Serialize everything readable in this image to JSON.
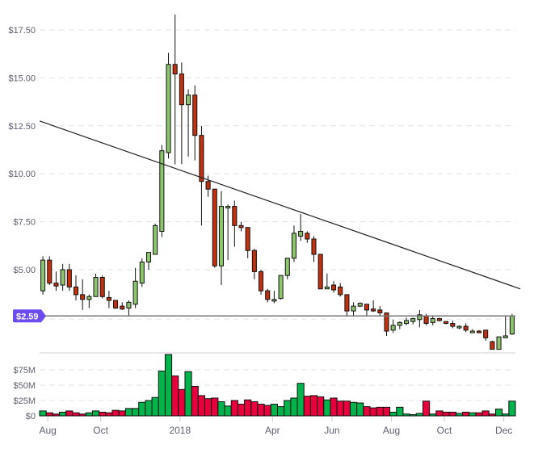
{
  "chart_data": {
    "type": "candlestick",
    "title": "",
    "xlabel": "",
    "ylabel": "",
    "grid": true,
    "price_axis": {
      "ticks": [
        "$5.00",
        "$7.50",
        "$10.00",
        "$12.50",
        "$15.00",
        "$17.50"
      ],
      "tick_values": [
        5,
        7.5,
        10,
        12.5,
        15,
        17.5
      ],
      "ylim": [
        0,
        18.5
      ]
    },
    "volume_axis": {
      "ticks": [
        "$0",
        "$25M",
        "$50M",
        "$75M"
      ],
      "tick_values": [
        0,
        25,
        50,
        75
      ],
      "unit": "M USD",
      "ylim": [
        0,
        105
      ]
    },
    "x_ticks": [
      {
        "label": "Aug",
        "index": 1
      },
      {
        "label": "Oct",
        "index": 9
      },
      {
        "label": "2018",
        "index": 21
      },
      {
        "label": "Apr",
        "index": 35
      },
      {
        "label": "Jun",
        "index": 44
      },
      {
        "label": "Aug",
        "index": 53
      },
      {
        "label": "Oct",
        "index": 61
      },
      {
        "label": "Dec",
        "index": 70
      }
    ],
    "current_price": {
      "label": "$2.59",
      "value": 2.59,
      "color": "#6c4cf0"
    },
    "trendline": {
      "from": {
        "index": -0.5,
        "value": 12.75
      },
      "to": {
        "index": 72,
        "value": 4.0
      }
    },
    "colors": {
      "up": "#8cc56e",
      "down": "#c2300e",
      "vol_up": "#00b34a",
      "vol_down": "#e8003c",
      "outline": "#111111"
    },
    "candles": [
      {
        "o": 3.9,
        "h": 5.7,
        "l": 3.7,
        "c": 5.5,
        "v": 8
      },
      {
        "o": 5.5,
        "h": 5.7,
        "l": 4.2,
        "c": 4.3,
        "v": 5
      },
      {
        "o": 4.3,
        "h": 4.9,
        "l": 3.9,
        "c": 4.15,
        "v": 3
      },
      {
        "o": 4.2,
        "h": 5.3,
        "l": 3.9,
        "c": 5.0,
        "v": 6
      },
      {
        "o": 5.0,
        "h": 5.3,
        "l": 3.9,
        "c": 4.1,
        "v": 8
      },
      {
        "o": 4.1,
        "h": 4.7,
        "l": 3.4,
        "c": 3.7,
        "v": 5
      },
      {
        "o": 3.7,
        "h": 4.5,
        "l": 2.9,
        "c": 3.45,
        "v": 3
      },
      {
        "o": 3.45,
        "h": 3.7,
        "l": 3.0,
        "c": 3.6,
        "v": 5
      },
      {
        "o": 3.6,
        "h": 4.8,
        "l": 3.6,
        "c": 4.6,
        "v": 8
      },
      {
        "o": 4.6,
        "h": 4.7,
        "l": 3.5,
        "c": 3.6,
        "v": 6
      },
      {
        "o": 3.55,
        "h": 3.9,
        "l": 3.0,
        "c": 3.4,
        "v": 5
      },
      {
        "o": 3.4,
        "h": 3.4,
        "l": 2.95,
        "c": 3.0,
        "v": 9
      },
      {
        "o": 3.1,
        "h": 3.3,
        "l": 2.9,
        "c": 2.95,
        "v": 8
      },
      {
        "o": 3.0,
        "h": 3.4,
        "l": 2.59,
        "c": 3.3,
        "v": 12
      },
      {
        "o": 3.2,
        "h": 5.1,
        "l": 3.0,
        "c": 4.4,
        "v": 12
      },
      {
        "o": 4.3,
        "h": 5.6,
        "l": 4.1,
        "c": 5.4,
        "v": 22
      },
      {
        "o": 5.4,
        "h": 5.9,
        "l": 5.0,
        "c": 5.9,
        "v": 25
      },
      {
        "o": 5.8,
        "h": 7.4,
        "l": 5.8,
        "c": 7.3,
        "v": 30
      },
      {
        "o": 7.0,
        "h": 11.5,
        "l": 6.7,
        "c": 11.2,
        "v": 73
      },
      {
        "o": 11.1,
        "h": 16.3,
        "l": 10.8,
        "c": 15.7,
        "v": 100
      },
      {
        "o": 15.7,
        "h": 18.3,
        "l": 10.5,
        "c": 15.2,
        "v": 65
      },
      {
        "o": 15.2,
        "h": 15.8,
        "l": 10.5,
        "c": 13.6,
        "v": 43
      },
      {
        "o": 13.6,
        "h": 14.4,
        "l": 10.9,
        "c": 14.1,
        "v": 72
      },
      {
        "o": 14.1,
        "h": 14.6,
        "l": 10.7,
        "c": 12.0,
        "v": 48
      },
      {
        "o": 12.0,
        "h": 12.5,
        "l": 7.3,
        "c": 9.6,
        "v": 33
      },
      {
        "o": 9.6,
        "h": 9.9,
        "l": 8.8,
        "c": 9.2,
        "v": 28
      },
      {
        "o": 9.2,
        "h": 9.2,
        "l": 5.1,
        "c": 5.2,
        "v": 29
      },
      {
        "o": 5.2,
        "h": 9.1,
        "l": 4.2,
        "c": 8.3,
        "v": 23
      },
      {
        "o": 8.3,
        "h": 8.4,
        "l": 5.5,
        "c": 8.3,
        "v": 16
      },
      {
        "o": 8.3,
        "h": 8.6,
        "l": 6.2,
        "c": 7.3,
        "v": 25
      },
      {
        "o": 7.3,
        "h": 7.5,
        "l": 7.0,
        "c": 7.2,
        "v": 19
      },
      {
        "o": 7.2,
        "h": 7.2,
        "l": 5.6,
        "c": 6.0,
        "v": 26
      },
      {
        "o": 6.0,
        "h": 6.1,
        "l": 4.5,
        "c": 4.9,
        "v": 23
      },
      {
        "o": 4.9,
        "h": 5.0,
        "l": 3.7,
        "c": 3.9,
        "v": 19
      },
      {
        "o": 3.9,
        "h": 4.0,
        "l": 3.3,
        "c": 3.45,
        "v": 17
      },
      {
        "o": 3.45,
        "h": 3.9,
        "l": 3.25,
        "c": 3.45,
        "v": 19
      },
      {
        "o": 3.5,
        "h": 4.7,
        "l": 3.45,
        "c": 4.7,
        "v": 15
      },
      {
        "o": 4.7,
        "h": 5.6,
        "l": 4.5,
        "c": 5.6,
        "v": 25
      },
      {
        "o": 5.6,
        "h": 7.3,
        "l": 5.4,
        "c": 6.9,
        "v": 29
      },
      {
        "o": 6.75,
        "h": 7.9,
        "l": 6.5,
        "c": 7.0,
        "v": 53
      },
      {
        "o": 6.9,
        "h": 7.0,
        "l": 6.4,
        "c": 6.6,
        "v": 32
      },
      {
        "o": 6.6,
        "h": 6.75,
        "l": 5.4,
        "c": 5.8,
        "v": 33
      },
      {
        "o": 5.8,
        "h": 5.8,
        "l": 4.0,
        "c": 4.0,
        "v": 31
      },
      {
        "o": 4.0,
        "h": 4.8,
        "l": 4.0,
        "c": 4.1,
        "v": 26
      },
      {
        "o": 4.2,
        "h": 4.4,
        "l": 3.8,
        "c": 3.95,
        "v": 29
      },
      {
        "o": 4.1,
        "h": 4.3,
        "l": 3.6,
        "c": 3.7,
        "v": 24
      },
      {
        "o": 3.7,
        "h": 3.7,
        "l": 2.59,
        "c": 2.85,
        "v": 24
      },
      {
        "o": 2.85,
        "h": 3.3,
        "l": 2.6,
        "c": 3.1,
        "v": 22
      },
      {
        "o": 3.1,
        "h": 3.3,
        "l": 3.05,
        "c": 3.25,
        "v": 21
      },
      {
        "o": 3.2,
        "h": 3.2,
        "l": 2.6,
        "c": 2.9,
        "v": 15
      },
      {
        "o": 2.95,
        "h": 3.4,
        "l": 2.8,
        "c": 2.85,
        "v": 13
      },
      {
        "o": 2.9,
        "h": 3.1,
        "l": 2.6,
        "c": 2.75,
        "v": 14
      },
      {
        "o": 2.75,
        "h": 2.75,
        "l": 1.55,
        "c": 1.8,
        "v": 14
      },
      {
        "o": 1.85,
        "h": 2.4,
        "l": 1.7,
        "c": 2.1,
        "v": 6
      },
      {
        "o": 2.1,
        "h": 2.3,
        "l": 1.9,
        "c": 2.25,
        "v": 14
      },
      {
        "o": 2.2,
        "h": 2.5,
        "l": 2.1,
        "c": 2.35,
        "v": 3
      },
      {
        "o": 2.3,
        "h": 2.5,
        "l": 2.15,
        "c": 2.45,
        "v": 2
      },
      {
        "o": 2.4,
        "h": 2.9,
        "l": 2.0,
        "c": 2.65,
        "v": 4
      },
      {
        "o": 2.6,
        "h": 2.7,
        "l": 2.1,
        "c": 2.2,
        "v": 24
      },
      {
        "o": 2.25,
        "h": 2.6,
        "l": 2.1,
        "c": 2.45,
        "v": 3
      },
      {
        "o": 2.45,
        "h": 2.5,
        "l": 2.3,
        "c": 2.35,
        "v": 8
      },
      {
        "o": 2.3,
        "h": 2.3,
        "l": 2.15,
        "c": 2.2,
        "v": 6
      },
      {
        "o": 2.2,
        "h": 2.35,
        "l": 1.95,
        "c": 2.05,
        "v": 6
      },
      {
        "o": 2.0,
        "h": 2.1,
        "l": 1.9,
        "c": 2.05,
        "v": 4
      },
      {
        "o": 2.05,
        "h": 2.2,
        "l": 1.75,
        "c": 1.85,
        "v": 6
      },
      {
        "o": 1.8,
        "h": 1.9,
        "l": 1.75,
        "c": 1.8,
        "v": 5
      },
      {
        "o": 1.8,
        "h": 1.85,
        "l": 1.7,
        "c": 1.75,
        "v": 5
      },
      {
        "o": 1.85,
        "h": 1.85,
        "l": 1.3,
        "c": 1.45,
        "v": 8
      },
      {
        "o": 1.25,
        "h": 1.3,
        "l": 0.85,
        "c": 0.85,
        "v": 3
      },
      {
        "o": 0.85,
        "h": 1.5,
        "l": 0.85,
        "c": 1.5,
        "v": 11
      },
      {
        "o": 1.45,
        "h": 2.6,
        "l": 1.45,
        "c": 1.55,
        "v": 3
      },
      {
        "o": 1.65,
        "h": 2.7,
        "l": 1.6,
        "c": 2.59,
        "v": 24
      }
    ]
  }
}
